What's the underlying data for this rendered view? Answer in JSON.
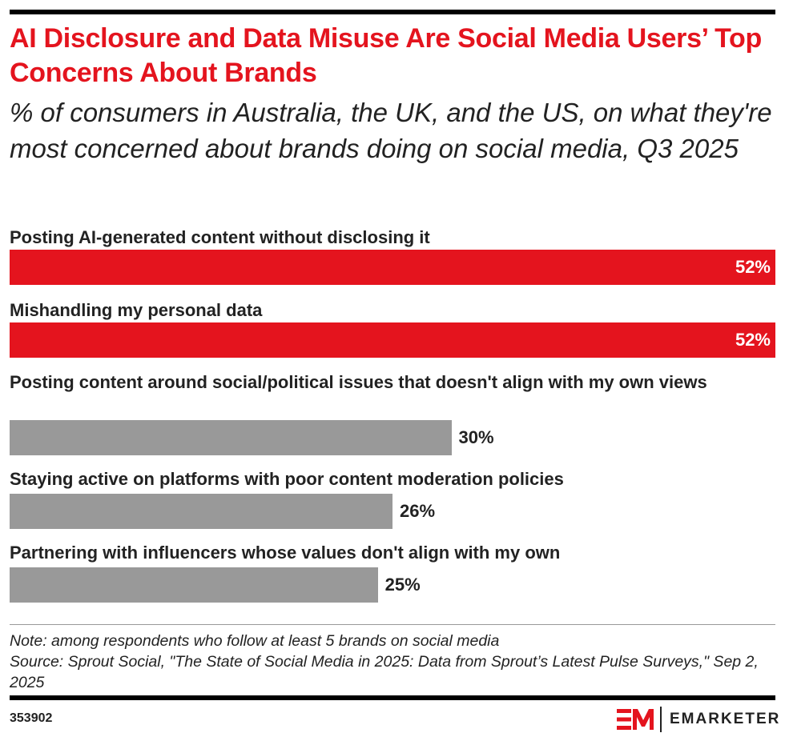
{
  "header": {
    "title": "AI Disclosure and Data Misuse Are Social Media Users’ Top Concerns About Brands",
    "subtitle": "% of consumers in Australia, the UK, and the US, on what they're most concerned about brands doing on social media, Q3 2025"
  },
  "chart_data": {
    "type": "bar",
    "orientation": "horizontal",
    "categories": [
      "Posting AI-generated content without disclosing it",
      "Mishandling my personal data",
      "Posting content around social/political issues that doesn't align with my own views",
      "Staying active on platforms with poor content moderation policies",
      "Partnering with influencers whose values don't align with my own"
    ],
    "values": [
      52,
      52,
      30,
      26,
      25
    ],
    "value_labels": [
      "52%",
      "52%",
      "30%",
      "26%",
      "25%"
    ],
    "colors": [
      "#e4141e",
      "#e4141e",
      "#999999",
      "#999999",
      "#999999"
    ],
    "xlim": [
      0,
      52
    ],
    "grid": false
  },
  "footer": {
    "note": "Note: among respondents who follow at least 5 brands on social media",
    "source": "Source: Sprout Social, \"The State of Social Media in 2025: Data from Sprout’s Latest Pulse Surveys,\" Sep 2, 2025",
    "chart_id": "353902",
    "logo_text": "EMARKETER"
  }
}
